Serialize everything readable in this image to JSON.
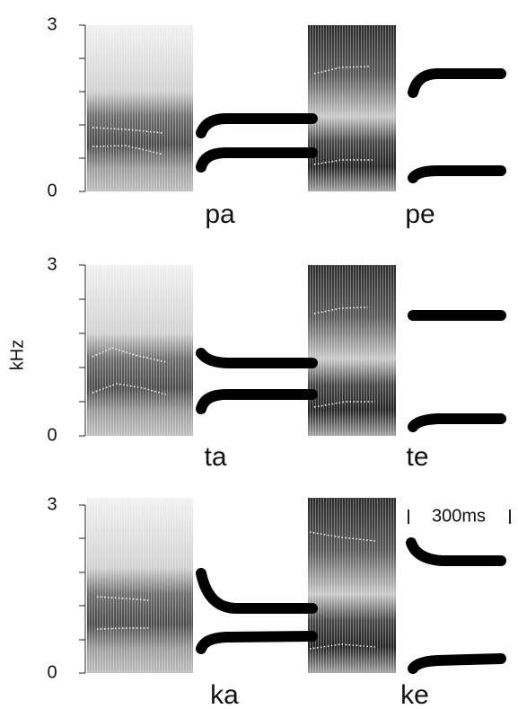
{
  "y_label": "kHz",
  "panels": [
    {
      "y_top": "3",
      "y_bottom": "0",
      "syllables": [
        "pa",
        "pe"
      ]
    },
    {
      "y_top": "3",
      "y_bottom": "0",
      "syllables": [
        "ta",
        "te"
      ]
    },
    {
      "y_top": "3",
      "y_bottom": "0",
      "syllables": [
        "ka",
        "ke"
      ]
    }
  ],
  "time_scale": "300ms"
}
